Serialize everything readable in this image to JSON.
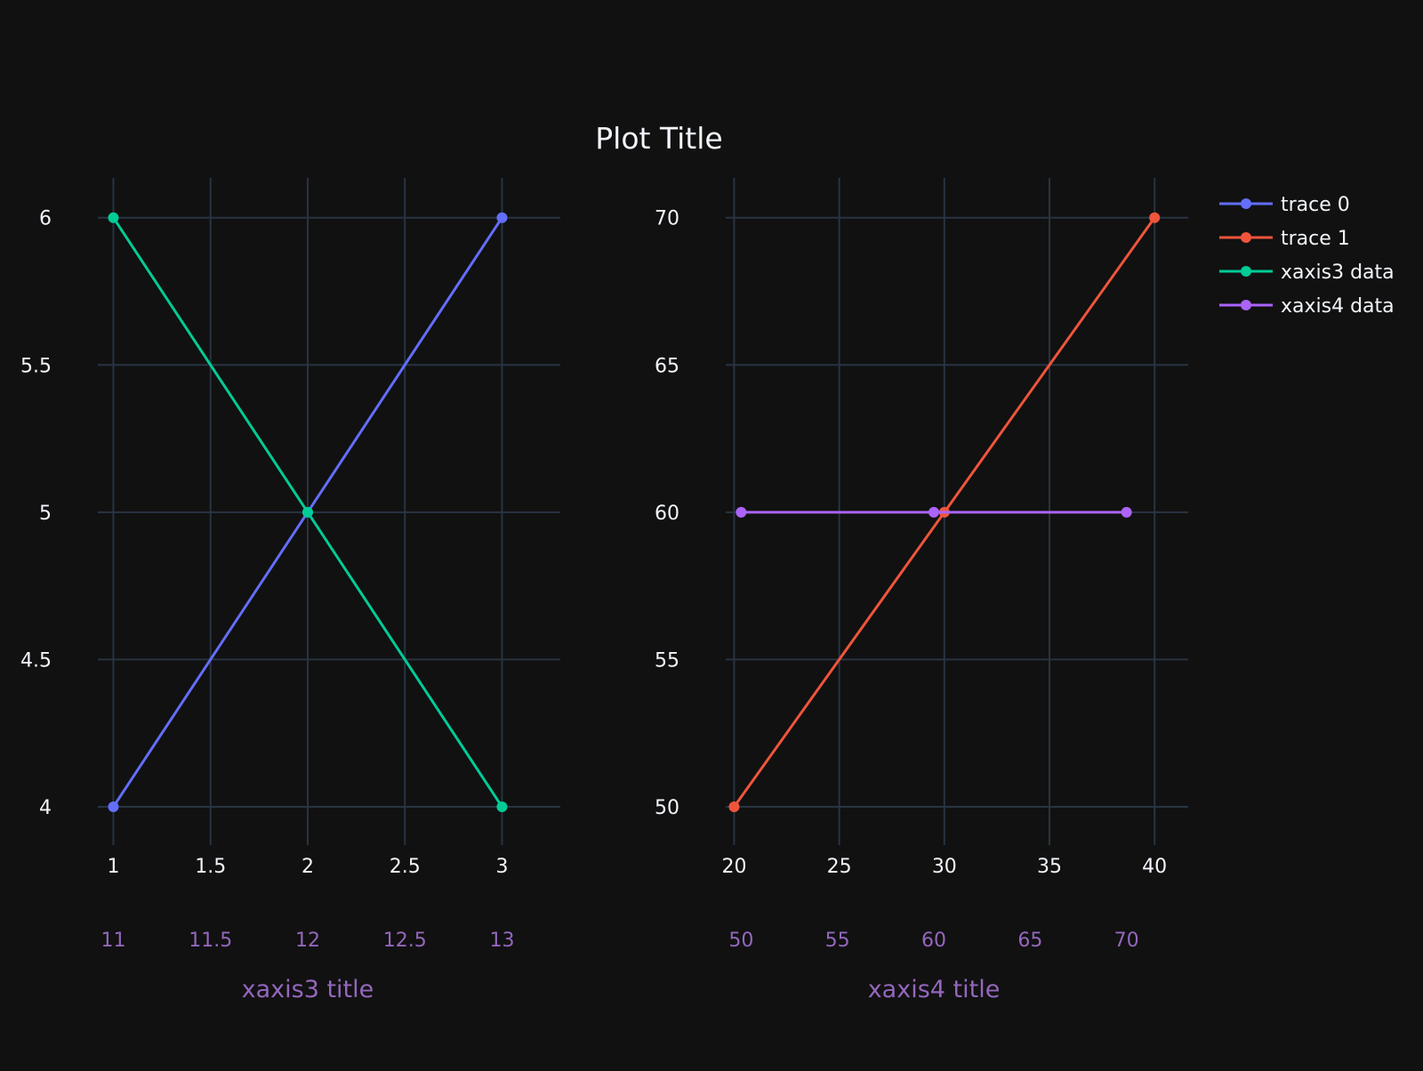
{
  "chart_data": {
    "type": "line",
    "title": "Plot Title",
    "colors": {
      "background": "#111111",
      "grid": "#283442",
      "text": "#f2f5fa",
      "secondary_axis": "#9467bd"
    },
    "legend": {
      "placement": "top-right",
      "items": [
        {
          "label": "trace 0",
          "color": "#636efa"
        },
        {
          "label": "trace 1",
          "color": "#ef553b"
        },
        {
          "label": "xaxis3 data",
          "color": "#00cc96"
        },
        {
          "label": "xaxis4 data",
          "color": "#ab63fa"
        }
      ]
    },
    "panels": [
      {
        "name": "left",
        "xaxis": {
          "range": [
            0.92,
            3.3
          ],
          "ticks": [
            "1",
            "1.5",
            "2",
            "2.5",
            "3"
          ],
          "tick_values": [
            1,
            1.5,
            2,
            2.5,
            3
          ]
        },
        "xaxis_secondary": {
          "title": "xaxis3 title",
          "range": [
            10.92,
            13.3
          ],
          "ticks": [
            "11",
            "11.5",
            "12",
            "12.5",
            "13"
          ],
          "tick_values": [
            11,
            11.5,
            12,
            12.5,
            13
          ]
        },
        "yaxis": {
          "range": [
            3.87,
            6.135
          ],
          "ticks": [
            "4",
            "4.5",
            "5",
            "5.5",
            "6"
          ],
          "tick_values": [
            4,
            4.5,
            5,
            5.5,
            6
          ]
        },
        "grid": true,
        "series": [
          {
            "name": "trace 0",
            "color": "#636efa",
            "axis": "primary",
            "x": [
              1,
              2,
              3
            ],
            "y": [
              4,
              5,
              6
            ]
          },
          {
            "name": "xaxis3 data",
            "color": "#00cc96",
            "axis": "secondary",
            "x": [
              11,
              12,
              13
            ],
            "y": [
              6,
              5,
              4
            ]
          }
        ]
      },
      {
        "name": "right",
        "xaxis": {
          "range": [
            19.6,
            41.6
          ],
          "ticks": [
            "20",
            "25",
            "30",
            "35",
            "40"
          ],
          "tick_values": [
            20,
            25,
            30,
            35,
            40
          ]
        },
        "xaxis_secondary": {
          "title": "xaxis4 title",
          "range": [
            49.2,
            73.2
          ],
          "ticks": [
            "50",
            "55",
            "60",
            "65",
            "70"
          ],
          "tick_values": [
            50,
            55,
            60,
            65,
            70
          ]
        },
        "yaxis": {
          "range": [
            48.7,
            71.35
          ],
          "ticks": [
            "50",
            "55",
            "60",
            "65",
            "70"
          ],
          "tick_values": [
            50,
            55,
            60,
            65,
            70
          ]
        },
        "grid": true,
        "series": [
          {
            "name": "trace 1",
            "color": "#ef553b",
            "axis": "primary",
            "x": [
              20,
              30,
              40
            ],
            "y": [
              50,
              60,
              70
            ]
          },
          {
            "name": "xaxis4 data",
            "color": "#ab63fa",
            "axis": "secondary",
            "x": [
              50,
              60,
              70
            ],
            "y": [
              60,
              60,
              60
            ]
          }
        ]
      }
    ]
  }
}
